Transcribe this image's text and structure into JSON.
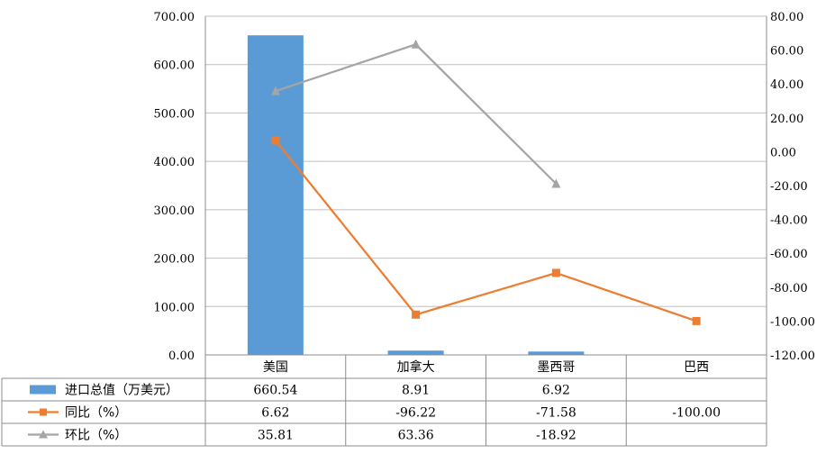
{
  "chart_data": {
    "type": "bar",
    "categories": [
      "美国",
      "加拿大",
      "墨西哥",
      "巴西"
    ],
    "series": [
      {
        "name": "进口总值（万美元）",
        "type": "bar",
        "axis": "left",
        "values": [
          660.54,
          8.91,
          6.92,
          null
        ],
        "labels": [
          "660.54",
          "8.91",
          "6.92",
          ""
        ],
        "color": "#5B9BD5"
      },
      {
        "name": "同比（%）",
        "type": "line",
        "axis": "right",
        "marker": "square",
        "values": [
          6.62,
          -96.22,
          -71.58,
          -100.0
        ],
        "labels": [
          "6.62",
          "-96.22",
          "-71.58",
          "-100.00"
        ],
        "color": "#ED7D31"
      },
      {
        "name": "环比（%）",
        "type": "line",
        "axis": "right",
        "marker": "triangle",
        "values": [
          35.81,
          63.36,
          -18.92,
          null
        ],
        "labels": [
          "35.81",
          "63.36",
          "-18.92",
          ""
        ],
        "color": "#A5A5A5"
      }
    ],
    "y_left": {
      "min": 0,
      "max": 700,
      "step": 100,
      "ticks": [
        "0.00",
        "100.00",
        "200.00",
        "300.00",
        "400.00",
        "500.00",
        "600.00",
        "700.00"
      ]
    },
    "y_right": {
      "min": -120,
      "max": 80,
      "step": 20,
      "ticks": [
        "-120.00",
        "-100.00",
        "-80.00",
        "-60.00",
        "-40.00",
        "-20.00",
        "0.00",
        "20.00",
        "40.00",
        "60.00",
        "80.00"
      ]
    },
    "grid": true,
    "legend": "data-table"
  }
}
